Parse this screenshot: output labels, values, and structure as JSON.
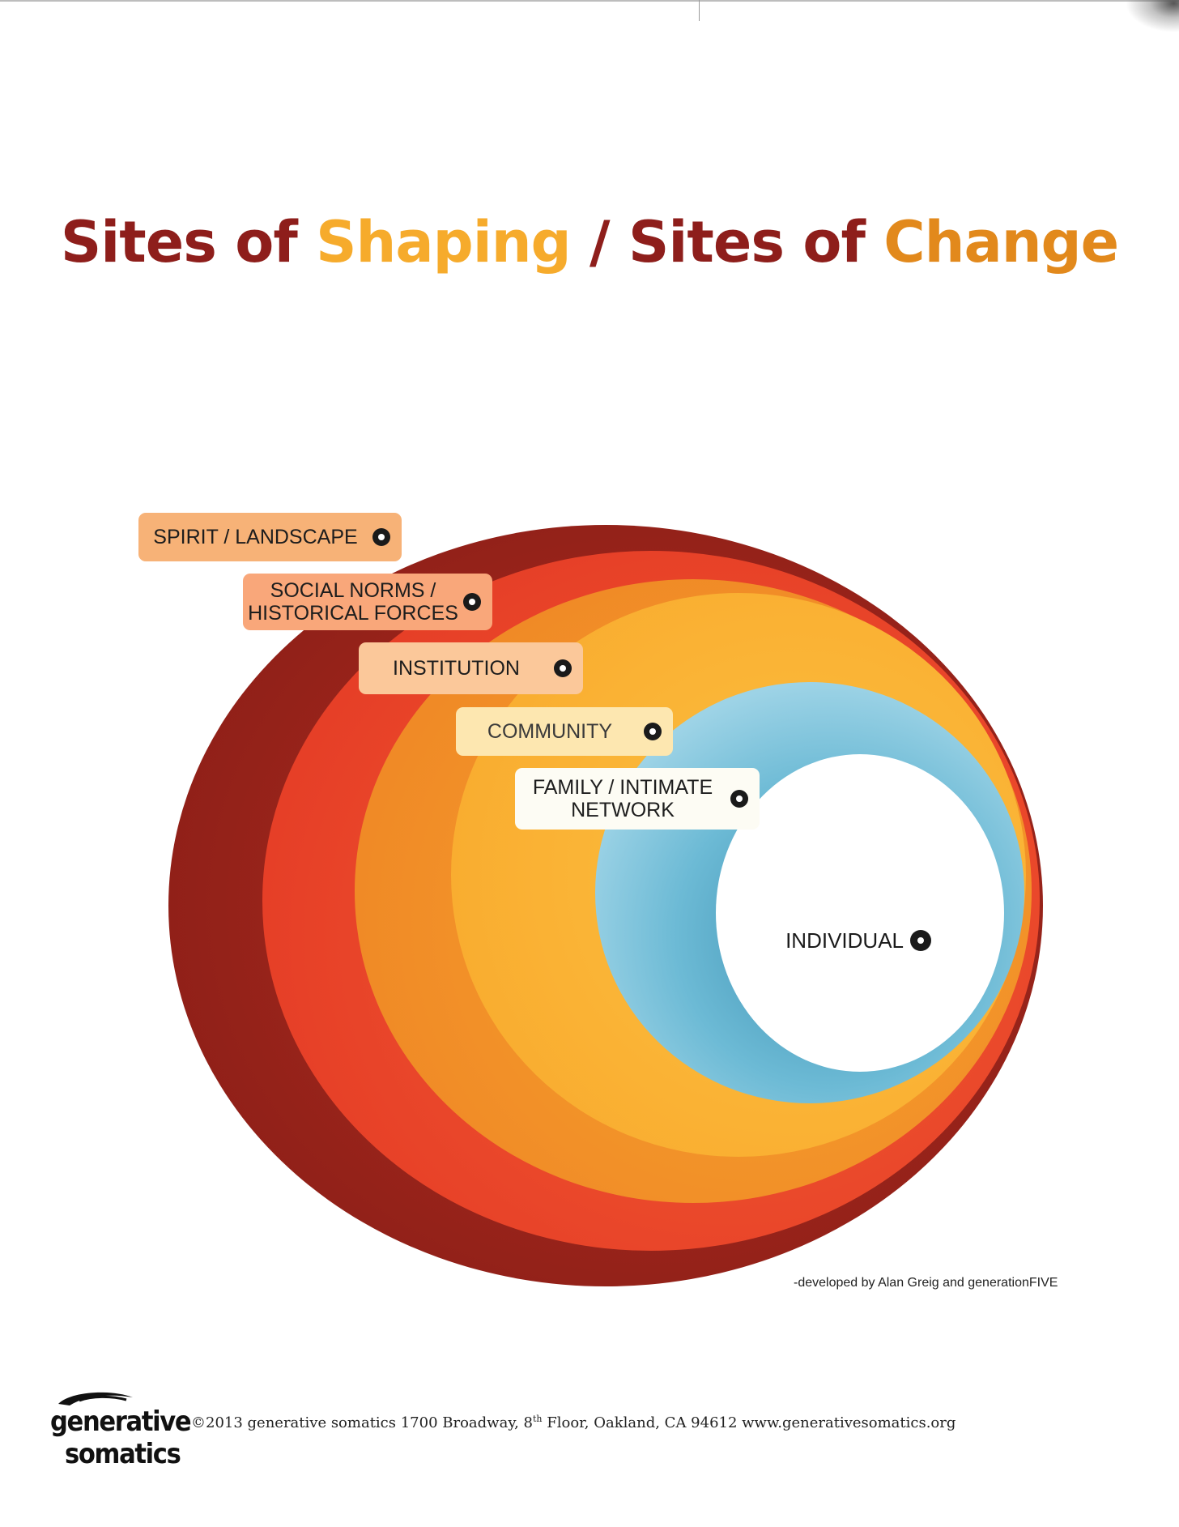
{
  "title": {
    "part1": "Sites of ",
    "part2": "Shaping",
    "part3": " / Sites of ",
    "part4": "Change"
  },
  "rings": [
    {
      "name": "spirit-landscape",
      "color": "#9b2419"
    },
    {
      "name": "social-norms",
      "color": "#ec4a2c"
    },
    {
      "name": "institution",
      "color": "#f3962b"
    },
    {
      "name": "community",
      "color": "#fbb733"
    },
    {
      "name": "family",
      "color": "#5fb0cc"
    },
    {
      "name": "individual",
      "color": "#ffffff"
    }
  ],
  "labels": {
    "spirit": "SPIRIT / LANDSCAPE",
    "social_line1": "SOCIAL NORMS /",
    "social_line2": "HISTORICAL FORCES",
    "institution": "INSTITUTION",
    "community": "COMMUNITY",
    "family_line1": "FAMILY / INTIMATE",
    "family_line2": "NETWORK",
    "individual": "INDIVIDUAL"
  },
  "credit": "-developed by Alan Greig and generationFIVE",
  "logo": {
    "line1": "generative",
    "line2": "somatics"
  },
  "footer": {
    "text_before_sup": "©2013 generative somatics 1700 Broadway, 8",
    "sup": "th",
    "text_after_sup": " Floor, Oakland, CA 94612  www.generativesomatics.org"
  }
}
